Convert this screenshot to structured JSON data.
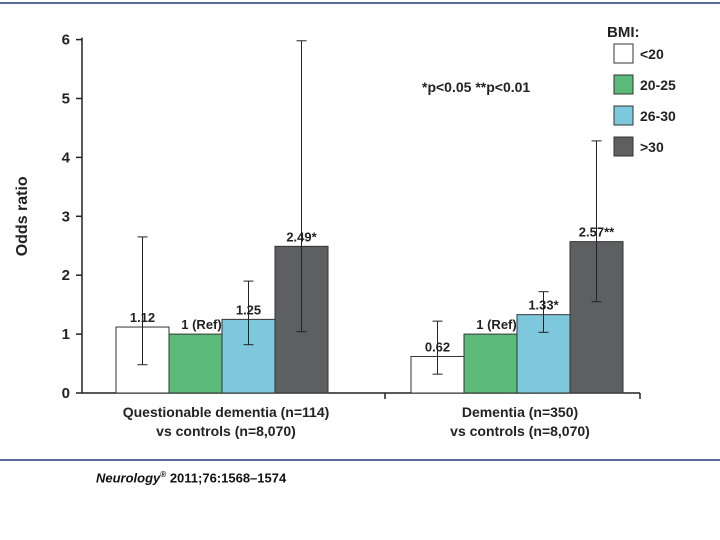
{
  "chart_data": {
    "type": "bar",
    "ylabel": "Odds ratio",
    "ylim": [
      0,
      6
    ],
    "yticks": [
      "0",
      "1",
      "2",
      "3",
      "4",
      "5",
      "6"
    ],
    "categories": [
      "Questionable dementia (n=114) vs controls (n=8,070)",
      "Dementia (n=350) vs controls (n=8,070)"
    ],
    "category_lines": [
      [
        "Questionable dementia (n=114)",
        "vs controls (n=8,070)"
      ],
      [
        "Dementia (n=350)",
        "vs controls (n=8,070)"
      ]
    ],
    "legend_title": "BMI:",
    "legend_position": "top-right",
    "significance_note": "*p<0.05  **p<0.01",
    "series": [
      {
        "name": "<20",
        "color": "#ffffff",
        "values": [
          1.12,
          0.62
        ],
        "ci_low": [
          0.48,
          0.32
        ],
        "ci_high": [
          2.65,
          1.22
        ],
        "labels": [
          "1.12",
          "0.62"
        ]
      },
      {
        "name": "20-25",
        "color": "#5cbb7a",
        "values": [
          1.0,
          1.0
        ],
        "ci_low": [
          null,
          null
        ],
        "ci_high": [
          null,
          null
        ],
        "labels": [
          "1 (Ref)",
          "1 (Ref)"
        ]
      },
      {
        "name": "26-30",
        "color": "#7ec8de",
        "values": [
          1.25,
          1.33
        ],
        "ci_low": [
          0.82,
          1.03
        ],
        "ci_high": [
          1.9,
          1.72
        ],
        "labels": [
          "1.25",
          "1.33*"
        ]
      },
      {
        "name": ">30",
        "color": "#5d5f60",
        "values": [
          2.49,
          2.57
        ],
        "ci_low": [
          1.04,
          1.55
        ],
        "ci_high": [
          5.98,
          4.28
        ],
        "labels": [
          "2.49*",
          "2.57**"
        ]
      }
    ]
  },
  "citation": {
    "journal": "Neurology",
    "registered": "®",
    "rest": " 2011;76:1568–1574"
  }
}
